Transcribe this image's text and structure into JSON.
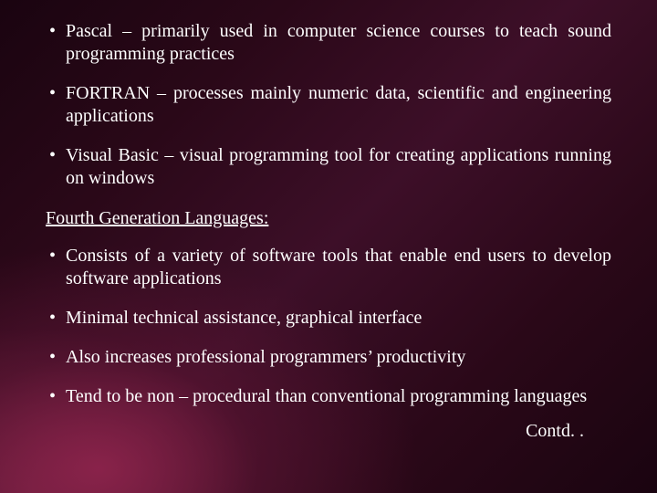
{
  "colors": {
    "text": "#ffffff",
    "bg_dark": "#1a0410",
    "bg_mid": "#3d0f28",
    "glow1": "#8c234b",
    "glow2": "#a0325a"
  },
  "typography": {
    "font_family": "Times New Roman",
    "body_fontsize_pt": 15,
    "line_height": 1.25
  },
  "top_bullets": [
    "Pascal – primarily used in computer science courses to teach sound programming practices",
    "FORTRAN – processes mainly numeric data, scientific and engineering applications",
    "Visual Basic – visual programming tool for creating applications running on windows"
  ],
  "section_heading": "Fourth Generation Languages:",
  "bottom_bullets": [
    "Consists of a variety of software tools that enable end users to develop software applications",
    "Minimal technical assistance, graphical interface",
    "Also increases professional programmers’ productivity",
    "Tend to be non – procedural than conventional programming languages"
  ],
  "footer": "Contd. ."
}
